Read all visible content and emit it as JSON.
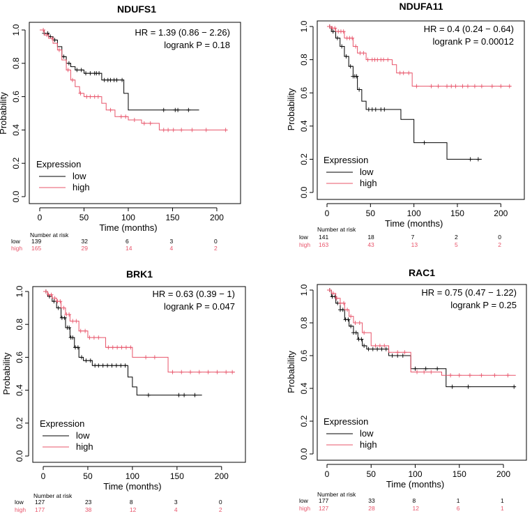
{
  "colors": {
    "low": "#000000",
    "high": "#e8546a"
  },
  "chart_data": [
    {
      "type": "line",
      "title": "NDUFS1",
      "xlabel": "Time (months)",
      "ylabel": "Probability",
      "xlim": [
        0,
        215
      ],
      "ylim": [
        0,
        1
      ],
      "xticks": [
        0,
        50,
        100,
        150,
        200
      ],
      "yticks": [
        "0.0",
        "0.2",
        "0.4",
        "0.6",
        "0.8",
        "1.0"
      ],
      "hr_text": "HR = 1.39 (0.86 − 2.26)",
      "logrank_text": "logrank P = 0.18",
      "legend_title": "Expression",
      "series": [
        {
          "name": "low",
          "steps": [
            [
              0,
              1.0
            ],
            [
              5,
              0.98
            ],
            [
              10,
              0.96
            ],
            [
              15,
              0.94
            ],
            [
              20,
              0.9
            ],
            [
              25,
              0.84
            ],
            [
              30,
              0.8
            ],
            [
              35,
              0.78
            ],
            [
              40,
              0.76
            ],
            [
              50,
              0.74
            ],
            [
              70,
              0.7
            ],
            [
              95,
              0.62
            ],
            [
              100,
              0.52
            ],
            [
              180,
              0.52
            ]
          ],
          "censors": [
            5,
            9,
            12,
            17,
            27,
            33,
            42,
            47,
            52,
            57,
            62,
            64,
            67,
            73,
            77,
            80,
            84,
            87,
            93,
            140,
            153,
            156,
            168
          ]
        },
        {
          "name": "high",
          "steps": [
            [
              0,
              1.0
            ],
            [
              5,
              0.97
            ],
            [
              10,
              0.95
            ],
            [
              15,
              0.92
            ],
            [
              20,
              0.88
            ],
            [
              25,
              0.82
            ],
            [
              30,
              0.76
            ],
            [
              35,
              0.7
            ],
            [
              40,
              0.66
            ],
            [
              45,
              0.62
            ],
            [
              50,
              0.6
            ],
            [
              70,
              0.56
            ],
            [
              75,
              0.52
            ],
            [
              85,
              0.48
            ],
            [
              100,
              0.46
            ],
            [
              115,
              0.44
            ],
            [
              135,
              0.4
            ],
            [
              212,
              0.4
            ]
          ],
          "censors": [
            4,
            8,
            14,
            22,
            32,
            37,
            46,
            53,
            57,
            62,
            66,
            80,
            92,
            97,
            107,
            118,
            125,
            140,
            145,
            151,
            160,
            172,
            188,
            210
          ]
        }
      ],
      "risk_header": "Number at risk",
      "risk_times": [
        0,
        50,
        100,
        150,
        200
      ],
      "risk_rows": [
        {
          "label": "low",
          "values": [
            "139",
            "32",
            "6",
            "3",
            "0"
          ]
        },
        {
          "label": "high",
          "values": [
            "165",
            "29",
            "14",
            "4",
            "2"
          ]
        }
      ]
    },
    {
      "type": "line",
      "title": "NDUFA11",
      "xlabel": "Time (months)",
      "ylabel": "Probability",
      "xlim": [
        0,
        215
      ],
      "ylim": [
        0,
        1
      ],
      "xticks": [
        0,
        50,
        100,
        150,
        200
      ],
      "yticks": [
        "0.0",
        "0.2",
        "0.4",
        "0.6",
        "0.8",
        "1.0"
      ],
      "hr_text": "HR = 0.4 (0.24 − 0.64)",
      "logrank_text": "logrank P = 0.00012",
      "legend_title": "Expression",
      "series": [
        {
          "name": "low",
          "steps": [
            [
              0,
              1.0
            ],
            [
              5,
              0.97
            ],
            [
              10,
              0.93
            ],
            [
              15,
              0.88
            ],
            [
              20,
              0.82
            ],
            [
              25,
              0.76
            ],
            [
              30,
              0.7
            ],
            [
              35,
              0.62
            ],
            [
              40,
              0.55
            ],
            [
              45,
              0.5
            ],
            [
              85,
              0.44
            ],
            [
              100,
              0.3
            ],
            [
              138,
              0.2
            ],
            [
              178,
              0.2
            ]
          ],
          "censors": [
            3,
            7,
            12,
            17,
            22,
            27,
            30,
            32,
            34,
            37,
            48,
            52,
            56,
            62,
            66,
            112,
            165,
            174
          ]
        },
        {
          "name": "high",
          "steps": [
            [
              0,
              1.0
            ],
            [
              5,
              0.99
            ],
            [
              10,
              0.97
            ],
            [
              20,
              0.93
            ],
            [
              30,
              0.88
            ],
            [
              35,
              0.84
            ],
            [
              45,
              0.8
            ],
            [
              75,
              0.77
            ],
            [
              80,
              0.72
            ],
            [
              98,
              0.64
            ],
            [
              212,
              0.64
            ]
          ],
          "censors": [
            3,
            6,
            9,
            13,
            16,
            19,
            23,
            26,
            29,
            33,
            38,
            42,
            47,
            52,
            55,
            58,
            62,
            65,
            70,
            84,
            88,
            94,
            103,
            120,
            128,
            138,
            143,
            148,
            156,
            162,
            170,
            178,
            190,
            200,
            210
          ]
        }
      ],
      "risk_header": "Number at risk",
      "risk_times": [
        0,
        50,
        100,
        150,
        200
      ],
      "risk_rows": [
        {
          "label": "low",
          "values": [
            "141",
            "18",
            "7",
            "2",
            "0"
          ]
        },
        {
          "label": "high",
          "values": [
            "163",
            "43",
            "13",
            "5",
            "2"
          ]
        }
      ]
    },
    {
      "type": "line",
      "title": "BRK1",
      "xlabel": "Time (months)",
      "ylabel": "Probability",
      "xlim": [
        0,
        215
      ],
      "ylim": [
        0,
        1
      ],
      "xticks": [
        0,
        50,
        100,
        150,
        200
      ],
      "yticks": [
        "0.0",
        "0.2",
        "0.4",
        "0.6",
        "0.8",
        "1.0"
      ],
      "hr_text": "HR = 0.63 (0.39 − 1)",
      "logrank_text": "logrank P = 0.047",
      "legend_title": "Expression",
      "series": [
        {
          "name": "low",
          "steps": [
            [
              0,
              1.0
            ],
            [
              5,
              0.97
            ],
            [
              10,
              0.94
            ],
            [
              15,
              0.9
            ],
            [
              20,
              0.84
            ],
            [
              25,
              0.78
            ],
            [
              30,
              0.72
            ],
            [
              35,
              0.66
            ],
            [
              40,
              0.6
            ],
            [
              45,
              0.58
            ],
            [
              55,
              0.55
            ],
            [
              95,
              0.48
            ],
            [
              100,
              0.42
            ],
            [
              105,
              0.37
            ],
            [
              178,
              0.37
            ]
          ],
          "censors": [
            3,
            7,
            12,
            17,
            21,
            24,
            27,
            29,
            31,
            33,
            36,
            39,
            43,
            48,
            53,
            58,
            62,
            67,
            72,
            77,
            82,
            87,
            92,
            118,
            152,
            158,
            170
          ]
        },
        {
          "name": "high",
          "steps": [
            [
              0,
              1.0
            ],
            [
              5,
              0.98
            ],
            [
              10,
              0.96
            ],
            [
              15,
              0.94
            ],
            [
              20,
              0.9
            ],
            [
              25,
              0.86
            ],
            [
              30,
              0.82
            ],
            [
              40,
              0.76
            ],
            [
              50,
              0.72
            ],
            [
              70,
              0.66
            ],
            [
              100,
              0.6
            ],
            [
              140,
              0.51
            ],
            [
              215,
              0.51
            ]
          ],
          "censors": [
            3,
            6,
            9,
            13,
            16,
            19,
            23,
            26,
            29,
            33,
            37,
            42,
            47,
            52,
            57,
            62,
            73,
            78,
            83,
            88,
            93,
            98,
            115,
            125,
            145,
            155,
            165,
            175,
            185,
            195,
            205,
            212
          ]
        }
      ],
      "risk_header": "Number at risk",
      "risk_times": [
        0,
        50,
        100,
        150,
        200
      ],
      "risk_rows": [
        {
          "label": "low",
          "values": [
            "127",
            "23",
            "8",
            "3",
            "0"
          ]
        },
        {
          "label": "high",
          "values": [
            "177",
            "38",
            "12",
            "4",
            "2"
          ]
        }
      ]
    },
    {
      "type": "line",
      "title": "RAC1",
      "xlabel": "Time (months)",
      "ylabel": "Probability",
      "xlim": [
        0,
        215
      ],
      "ylim": [
        0,
        1
      ],
      "xticks": [
        0,
        50,
        100,
        150,
        200
      ],
      "yticks": [
        "0.0",
        "0.2",
        "0.4",
        "0.6",
        "0.8",
        "1.0"
      ],
      "hr_text": "HR = 0.75 (0.47 − 1.22)",
      "logrank_text": "logrank P = 0.25",
      "legend_title": "Expression",
      "series": [
        {
          "name": "low",
          "steps": [
            [
              0,
              1.0
            ],
            [
              5,
              0.96
            ],
            [
              10,
              0.92
            ],
            [
              15,
              0.88
            ],
            [
              20,
              0.82
            ],
            [
              25,
              0.78
            ],
            [
              30,
              0.74
            ],
            [
              35,
              0.7
            ],
            [
              40,
              0.66
            ],
            [
              45,
              0.64
            ],
            [
              70,
              0.6
            ],
            [
              95,
              0.52
            ],
            [
              135,
              0.41
            ],
            [
              214,
              0.41
            ]
          ],
          "censors": [
            3,
            6,
            9,
            12,
            15,
            18,
            21,
            24,
            27,
            30,
            33,
            36,
            39,
            42,
            47,
            52,
            57,
            62,
            67,
            74,
            80,
            86,
            100,
            112,
            125,
            142,
            160,
            212
          ]
        },
        {
          "name": "high",
          "steps": [
            [
              0,
              1.0
            ],
            [
              5,
              0.98
            ],
            [
              10,
              0.95
            ],
            [
              15,
              0.92
            ],
            [
              20,
              0.88
            ],
            [
              25,
              0.84
            ],
            [
              30,
              0.8
            ],
            [
              40,
              0.74
            ],
            [
              50,
              0.66
            ],
            [
              70,
              0.62
            ],
            [
              95,
              0.5
            ],
            [
              130,
              0.48
            ],
            [
              214,
              0.48
            ]
          ],
          "censors": [
            3,
            7,
            11,
            15,
            19,
            23,
            27,
            32,
            37,
            42,
            55,
            60,
            65,
            80,
            88,
            102,
            110,
            118,
            140,
            150,
            162,
            175,
            190,
            205
          ]
        }
      ],
      "risk_header": "Number at risk",
      "risk_times": [
        0,
        50,
        100,
        150,
        200
      ],
      "risk_rows": [
        {
          "label": "low",
          "values": [
            "177",
            "33",
            "8",
            "1",
            "1"
          ]
        },
        {
          "label": "high",
          "values": [
            "127",
            "28",
            "12",
            "6",
            "1"
          ]
        }
      ]
    }
  ]
}
